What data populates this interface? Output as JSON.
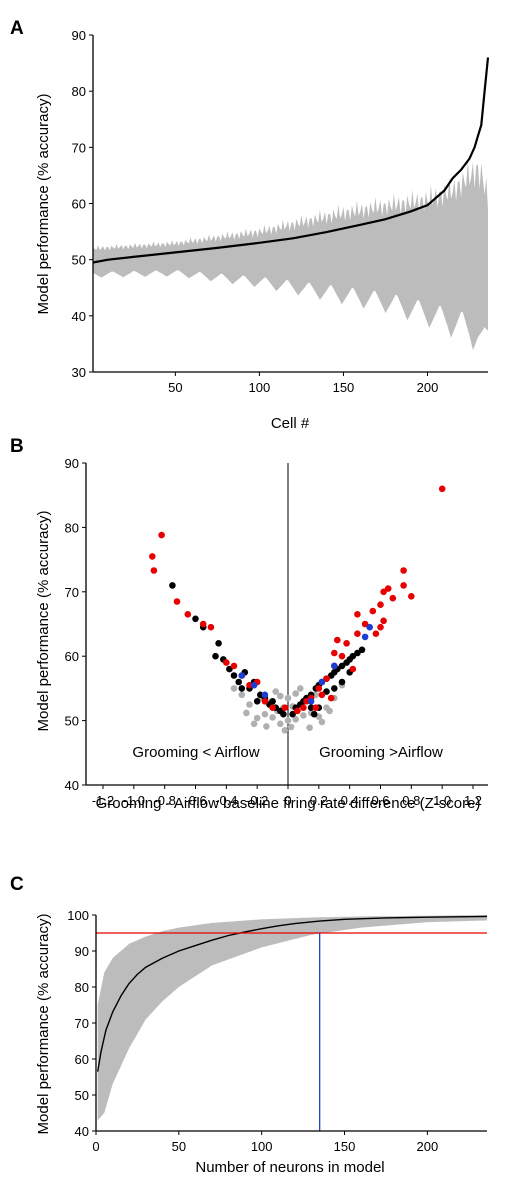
{
  "chart_data": [
    {
      "panel": "A",
      "type": "line",
      "xlabel": "Cell #",
      "ylabel": "Model performance (% accuracy)",
      "xlim": [
        1,
        236
      ],
      "ylim": [
        30,
        90
      ],
      "xticks": [
        50,
        100,
        150,
        200
      ],
      "yticks": [
        30,
        40,
        50,
        60,
        70,
        80,
        90
      ],
      "colors": {
        "line": "#000000",
        "band": "#bcbcbc"
      },
      "series": [
        {
          "x": [
            1,
            10,
            25,
            50,
            75,
            100,
            120,
            140,
            160,
            175,
            190,
            200,
            210,
            215,
            220,
            225,
            228,
            230,
            232,
            234,
            236
          ],
          "values": [
            49.5,
            50.0,
            50.5,
            51.3,
            52.1,
            53.0,
            53.8,
            54.9,
            56.2,
            57.2,
            58.6,
            59.7,
            62.3,
            64.5,
            66.0,
            68.0,
            70.0,
            72.0,
            74.0,
            80.0,
            86.0
          ]
        }
      ],
      "band": {
        "x": [
          1,
          50,
          100,
          150,
          175,
          200,
          215,
          225,
          230,
          233,
          236
        ],
        "lower": [
          46.8,
          47.0,
          45.0,
          42.0,
          40.5,
          38.0,
          36.0,
          34.5,
          33.0,
          31.0,
          34.0
        ],
        "upper": [
          52.5,
          53.5,
          56.0,
          60.0,
          61.5,
          63.0,
          65.0,
          68.0,
          69.5,
          68.0,
          63.0
        ]
      }
    },
    {
      "panel": "B",
      "type": "scatter",
      "xlabel": "Grooming - Airflow baseline firing rate difference (Z-score)",
      "ylabel": "Model performance (% accuracy)",
      "xlim": [
        -1.3,
        1.3
      ],
      "ylim": [
        40,
        90
      ],
      "xticks": [
        -1.2,
        -1.0,
        -0.8,
        -0.6,
        -0.4,
        -0.2,
        0,
        0.2,
        0.4,
        0.6,
        0.8,
        1.0,
        1.2
      ],
      "xticklabels": [
        "-1.2",
        "-1.0",
        "-0.8",
        "-0.6",
        "-0.4",
        "-0.2",
        "0",
        "0.2",
        "0.4",
        "0.6",
        "0.8",
        "1.0",
        "1.2"
      ],
      "yticks": [
        40,
        50,
        60,
        70,
        80,
        90
      ],
      "annotations": [
        {
          "text": "Grooming < Airflow",
          "x": -0.63,
          "y": 45.2
        },
        {
          "text": "Grooming >Airflow",
          "x": 0.58,
          "y": 45.2
        }
      ],
      "series": [
        {
          "color": "#b0b0b0",
          "points": [
            [
              -0.02,
              48.5
            ],
            [
              0.02,
              49.0
            ],
            [
              0.0,
              50.0
            ],
            [
              -0.05,
              49.5
            ],
            [
              0.05,
              50.2
            ],
            [
              -0.1,
              50.5
            ],
            [
              0.1,
              50.8
            ],
            [
              -0.15,
              51.0
            ],
            [
              0.15,
              51.2
            ],
            [
              -0.2,
              50.4
            ],
            [
              0.2,
              50.6
            ],
            [
              -0.25,
              52.5
            ],
            [
              0.25,
              52.0
            ],
            [
              0.07,
              51.8
            ],
            [
              -0.07,
              51.5
            ],
            [
              0.12,
              53.0
            ],
            [
              -0.12,
              52.8
            ],
            [
              0.03,
              52.2
            ],
            [
              -0.03,
              52.0
            ],
            [
              0.18,
              54.0
            ],
            [
              -0.18,
              53.5
            ],
            [
              0.3,
              53.5
            ],
            [
              -0.3,
              54.0
            ],
            [
              0.08,
              55.0
            ],
            [
              -0.08,
              54.5
            ],
            [
              0.0,
              53.5
            ],
            [
              0.22,
              49.8
            ],
            [
              -0.22,
              49.5
            ],
            [
              0.35,
              55.5
            ],
            [
              -0.35,
              55.0
            ],
            [
              0.14,
              48.9
            ],
            [
              -0.14,
              49.1
            ],
            [
              0.05,
              54.2
            ],
            [
              -0.05,
              53.8
            ],
            [
              0.27,
              51.5
            ],
            [
              -0.27,
              51.2
            ]
          ]
        },
        {
          "color": "#000000",
          "points": [
            [
              -0.75,
              71.0
            ],
            [
              -0.6,
              65.8
            ],
            [
              -0.55,
              64.5
            ],
            [
              -0.45,
              62.0
            ],
            [
              -0.47,
              60.0
            ],
            [
              -0.42,
              59.5
            ],
            [
              -0.38,
              58.0
            ],
            [
              -0.35,
              57.0
            ],
            [
              -0.32,
              56.0
            ],
            [
              -0.3,
              55.0
            ],
            [
              -0.28,
              57.5
            ],
            [
              -0.22,
              56.0
            ],
            [
              -0.18,
              54.0
            ],
            [
              -0.15,
              53.5
            ],
            [
              -0.12,
              52.5
            ],
            [
              -0.1,
              53.0
            ],
            [
              -0.08,
              52.0
            ],
            [
              -0.05,
              51.5
            ],
            [
              -0.03,
              51.0
            ],
            [
              0.03,
              51.0
            ],
            [
              0.05,
              52.0
            ],
            [
              0.08,
              52.5
            ],
            [
              0.1,
              53.0
            ],
            [
              0.12,
              53.5
            ],
            [
              0.15,
              54.0
            ],
            [
              0.18,
              55.0
            ],
            [
              0.2,
              55.5
            ],
            [
              0.22,
              56.0
            ],
            [
              0.25,
              56.5
            ],
            [
              0.28,
              57.0
            ],
            [
              0.3,
              57.5
            ],
            [
              0.32,
              58.0
            ],
            [
              0.35,
              58.5
            ],
            [
              0.38,
              59.0
            ],
            [
              0.4,
              59.5
            ],
            [
              0.42,
              60.0
            ],
            [
              0.45,
              60.5
            ],
            [
              0.48,
              61.0
            ],
            [
              0.2,
              52.0
            ],
            [
              0.25,
              54.5
            ],
            [
              0.3,
              55.0
            ],
            [
              0.35,
              56.0
            ],
            [
              -0.25,
              55.0
            ],
            [
              -0.2,
              53.0
            ],
            [
              0.15,
              52.0
            ],
            [
              0.4,
              57.5
            ],
            [
              0.17,
              51.0
            ]
          ]
        },
        {
          "color": "#e80000",
          "points": [
            [
              -0.88,
              75.5
            ],
            [
              -0.87,
              73.3
            ],
            [
              -0.82,
              78.8
            ],
            [
              -0.65,
              66.5
            ],
            [
              -0.72,
              68.5
            ],
            [
              -0.55,
              65.0
            ],
            [
              -0.5,
              64.5
            ],
            [
              -0.4,
              59.0
            ],
            [
              -0.35,
              58.5
            ],
            [
              -0.3,
              57.0
            ],
            [
              -0.25,
              55.5
            ],
            [
              -0.2,
              56.0
            ],
            [
              -0.15,
              53.0
            ],
            [
              -0.1,
              52.0
            ],
            [
              0.1,
              52.0
            ],
            [
              0.15,
              53.5
            ],
            [
              0.2,
              55.0
            ],
            [
              0.25,
              56.5
            ],
            [
              0.3,
              58.5
            ],
            [
              0.35,
              60.0
            ],
            [
              0.38,
              62.0
            ],
            [
              0.32,
              62.5
            ],
            [
              0.45,
              63.5
            ],
            [
              0.45,
              66.5
            ],
            [
              0.5,
              65.0
            ],
            [
              0.55,
              67.0
            ],
            [
              0.6,
              68.0
            ],
            [
              0.62,
              70.0
            ],
            [
              0.65,
              70.5
            ],
            [
              0.68,
              69.0
            ],
            [
              0.75,
              71.0
            ],
            [
              0.75,
              73.3
            ],
            [
              0.8,
              69.3
            ],
            [
              0.62,
              65.5
            ],
            [
              0.6,
              64.5
            ],
            [
              0.42,
              58.0
            ],
            [
              0.18,
              52.0
            ],
            [
              0.22,
              54.0
            ],
            [
              0.28,
              53.5
            ],
            [
              1.0,
              86.0
            ],
            [
              -0.02,
              52.0
            ],
            [
              0.06,
              51.5
            ],
            [
              0.12,
              53.0
            ],
            [
              0.57,
              63.5
            ],
            [
              0.3,
              60.5
            ]
          ]
        },
        {
          "color": "#1c3fd1",
          "points": [
            [
              -0.3,
              57.0
            ],
            [
              -0.22,
              55.5
            ],
            [
              -0.15,
              54.0
            ],
            [
              0.15,
              53.0
            ],
            [
              0.22,
              56.0
            ],
            [
              0.3,
              58.5
            ],
            [
              0.5,
              63.0
            ],
            [
              0.53,
              64.5
            ]
          ]
        }
      ]
    },
    {
      "panel": "C",
      "type": "line",
      "xlabel": "Number of neurons in model",
      "ylabel": "Model performance (% accuracy)",
      "xlim": [
        0,
        236
      ],
      "ylim": [
        40,
        100
      ],
      "xticks": [
        0,
        50,
        100,
        150,
        200
      ],
      "yticks": [
        40,
        50,
        60,
        70,
        80,
        90,
        100
      ],
      "colors": {
        "line": "#000000",
        "band": "#bcbcbc",
        "threshold": "#e80000",
        "marker": "#1c3fd1"
      },
      "series": [
        {
          "x": [
            1,
            3,
            6,
            10,
            15,
            20,
            25,
            30,
            40,
            50,
            60,
            70,
            80,
            90,
            100,
            110,
            120,
            135,
            150,
            175,
            200,
            236
          ],
          "values": [
            56.5,
            62.0,
            68.0,
            73.0,
            77.5,
            81.0,
            83.5,
            85.5,
            88.0,
            90.0,
            91.5,
            93.0,
            94.3,
            95.3,
            96.2,
            97.0,
            97.6,
            98.3,
            98.8,
            99.2,
            99.4,
            99.6
          ]
        }
      ],
      "band": {
        "x": [
          1,
          5,
          10,
          20,
          30,
          40,
          50,
          70,
          100,
          130,
          160,
          200,
          236
        ],
        "lower": [
          43.0,
          45.0,
          53.0,
          63.0,
          71.0,
          76.0,
          80.0,
          86.0,
          91.0,
          94.5,
          96.5,
          98.0,
          98.5
        ],
        "upper": [
          75.0,
          84.0,
          88.0,
          92.0,
          94.0,
          95.5,
          96.5,
          97.8,
          98.8,
          99.3,
          99.6,
          99.8,
          100.0
        ]
      },
      "hline": 95,
      "vline": 135
    }
  ],
  "panels": [
    {
      "letter": "A",
      "xlabel": "Cell #",
      "ylabel": "Model performance (% accuracy)",
      "ann_left": "",
      "ann_right": ""
    },
    {
      "letter": "B",
      "xlabel": "Grooming - Airflow baseline firing rate difference (Z-score)",
      "ylabel": "Model performance (% accuracy)",
      "ann_left": "Grooming < Airflow",
      "ann_right": "Grooming >Airflow"
    },
    {
      "letter": "C",
      "xlabel": "Number of neurons in model",
      "ylabel": "Model performance (% accuracy)",
      "ann_left": "",
      "ann_right": ""
    }
  ]
}
